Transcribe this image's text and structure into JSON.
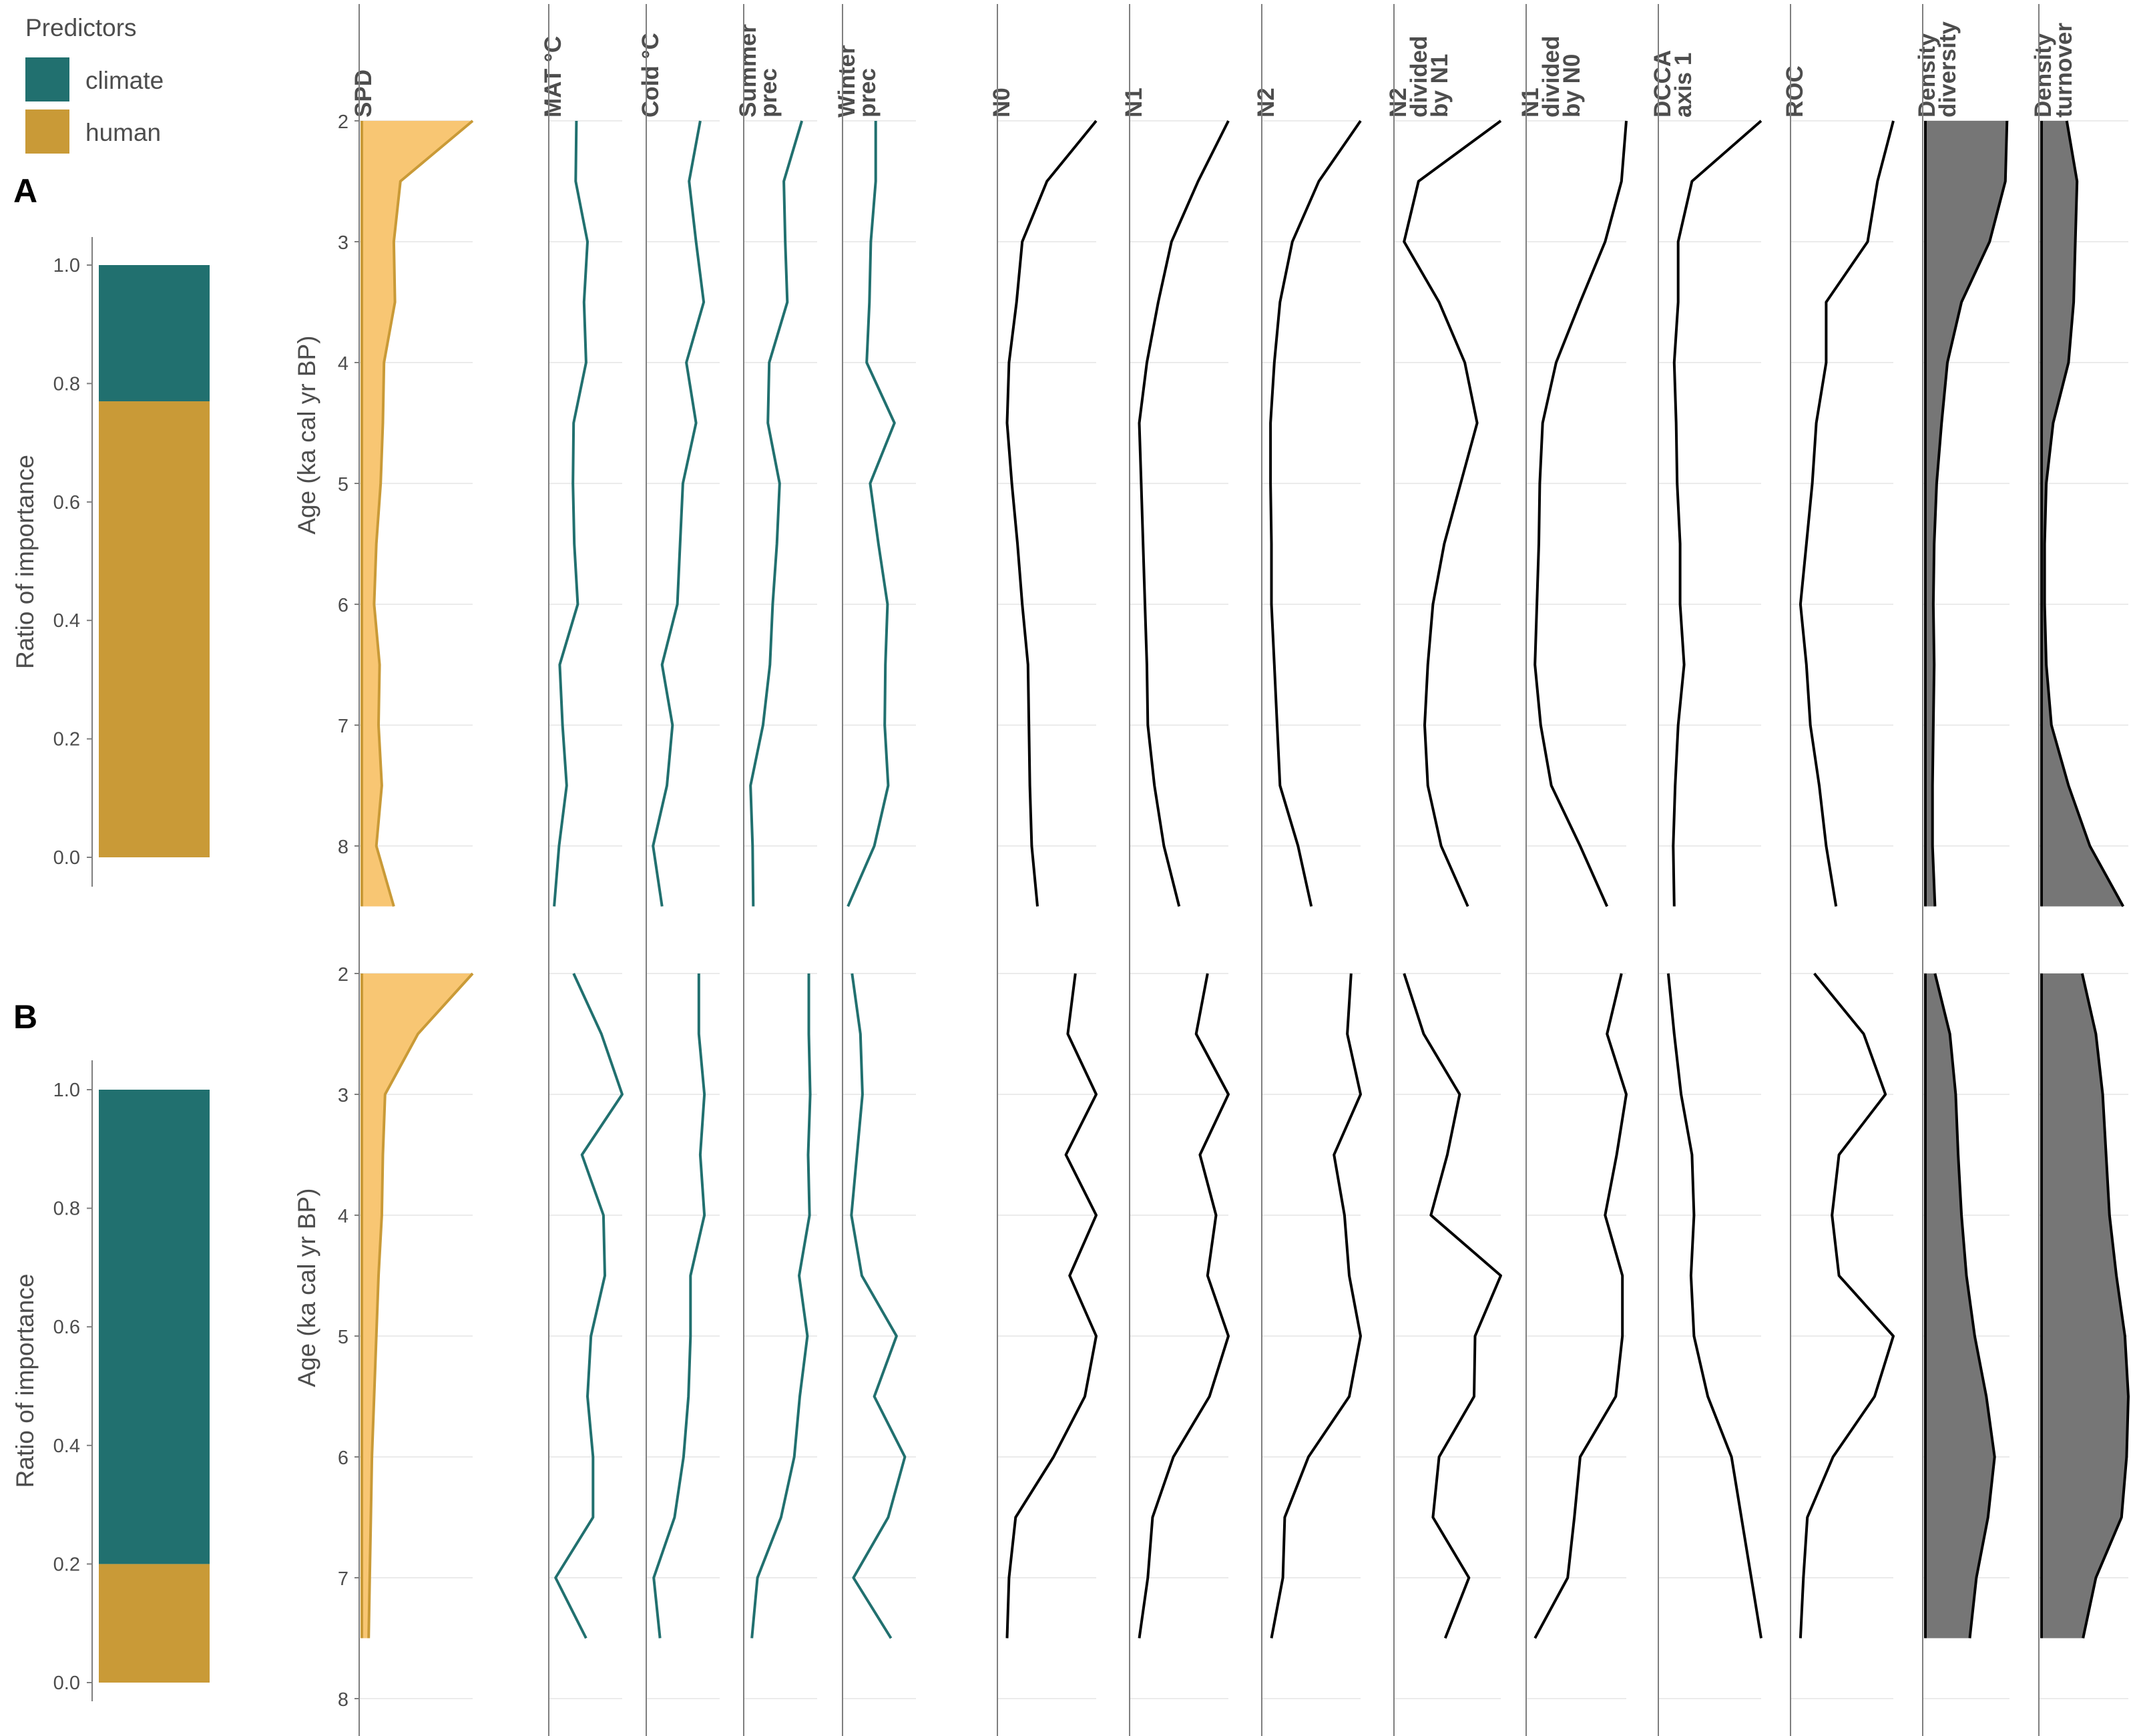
{
  "legend": {
    "title": "Predictors",
    "items": [
      {
        "label": "climate",
        "color": "#21706f"
      },
      {
        "label": "human",
        "color": "#c99a37"
      }
    ]
  },
  "colors": {
    "climate": "#21706f",
    "human": "#c99a37",
    "spd_fill": "#f8c673",
    "spd_line": "#c99a37",
    "diversity": "#000000",
    "density_fill": "#767676",
    "grid": "#ebebeb",
    "axis": "#7f7f7f"
  },
  "bar_axis": {
    "label": "Ratio of importance",
    "ticks": [
      "0.0",
      "0.2",
      "0.4",
      "0.6",
      "0.8",
      "1.0"
    ],
    "range": [
      0,
      1
    ]
  },
  "age_axis": {
    "label": "Age (ka cal yr BP)",
    "ticks": [
      "2",
      "3",
      "4",
      "5",
      "6",
      "7",
      "8"
    ]
  },
  "column_headers": [
    [
      "SPD"
    ],
    [
      "MAT °C"
    ],
    [
      "Cold °C"
    ],
    [
      "Summer",
      "prec"
    ],
    [
      "Winter",
      "prec"
    ],
    [
      "N0"
    ],
    [
      "N1"
    ],
    [
      "N2"
    ],
    [
      "N2",
      "divided",
      "by N1"
    ],
    [
      "N1",
      "divided",
      "by N0"
    ],
    [
      "DCCA",
      "axis 1"
    ],
    [
      "ROC"
    ],
    [
      "Density",
      "diversity"
    ],
    [
      "Density",
      "turnover"
    ]
  ],
  "chart_data": [
    {
      "panel": "A",
      "type": "stratigraphic",
      "importance_bar": {
        "human": 0.77,
        "climate": 0.23
      },
      "age_range": [
        2,
        8.5
      ],
      "ages": [
        2,
        2.5,
        3,
        3.5,
        4,
        4.5,
        5,
        5.5,
        6,
        6.5,
        7,
        7.5,
        8,
        8.5
      ],
      "series": [
        {
          "name": "SPD",
          "kind": "spd",
          "values": [
            1,
            0.34,
            0.28,
            0.29,
            0.19,
            0.18,
            0.16,
            0.12,
            0.1,
            0.15,
            0.14,
            0.17,
            0.12,
            0.28
          ]
        },
        {
          "name": "MAT °C",
          "kind": "climate",
          "values": [
            0.34,
            0.33,
            0.5,
            0.45,
            0.48,
            0.3,
            0.29,
            0.31,
            0.36,
            0.1,
            0.14,
            0.2,
            0.09,
            0.02
          ]
        },
        {
          "name": "Cold °C",
          "kind": "climate",
          "values": [
            0.72,
            0.56,
            0.66,
            0.77,
            0.52,
            0.66,
            0.47,
            0.43,
            0.39,
            0.17,
            0.32,
            0.24,
            0.04,
            0.17
          ]
        },
        {
          "name": "Summer prec",
          "kind": "climate",
          "values": [
            0.78,
            0.52,
            0.54,
            0.57,
            0.31,
            0.29,
            0.46,
            0.42,
            0.36,
            0.32,
            0.22,
            0.04,
            0.07,
            0.08
          ]
        },
        {
          "name": "Winter prec",
          "kind": "climate",
          "values": [
            0.42,
            0.42,
            0.35,
            0.33,
            0.29,
            0.69,
            0.34,
            0.46,
            0.59,
            0.56,
            0.55,
            0.6,
            0.4,
            0.02
          ]
        },
        {
          "name": "N0",
          "kind": "diversity",
          "values": [
            1,
            0.48,
            0.22,
            0.16,
            0.08,
            0.06,
            0.11,
            0.17,
            0.22,
            0.28,
            0.29,
            0.3,
            0.32,
            0.38
          ]
        },
        {
          "name": "N1",
          "kind": "diversity",
          "values": [
            1,
            0.68,
            0.4,
            0.26,
            0.14,
            0.06,
            0.08,
            0.1,
            0.12,
            0.14,
            0.15,
            0.22,
            0.32,
            0.48
          ]
        },
        {
          "name": "N2",
          "kind": "diversity",
          "values": [
            1,
            0.56,
            0.28,
            0.15,
            0.09,
            0.05,
            0.05,
            0.06,
            0.06,
            0.09,
            0.12,
            0.15,
            0.34,
            0.48
          ]
        },
        {
          "name": "N2 divided by N1",
          "kind": "diversity",
          "values": [
            1,
            0.2,
            0.06,
            0.4,
            0.65,
            0.77,
            0.61,
            0.45,
            0.34,
            0.29,
            0.26,
            0.29,
            0.42,
            0.68
          ]
        },
        {
          "name": "N1 divided by N0",
          "kind": "diversity",
          "values": [
            1,
            0.95,
            0.78,
            0.52,
            0.27,
            0.13,
            0.1,
            0.09,
            0.07,
            0.05,
            0.11,
            0.22,
            0.52,
            0.8
          ]
        },
        {
          "name": "DCCA axis 1",
          "kind": "diversity",
          "values": [
            1,
            0.3,
            0.16,
            0.16,
            0.12,
            0.14,
            0.15,
            0.18,
            0.18,
            0.22,
            0.16,
            0.13,
            0.11,
            0.12
          ]
        },
        {
          "name": "ROC",
          "kind": "diversity",
          "values": [
            1,
            0.84,
            0.74,
            0.32,
            0.32,
            0.22,
            0.18,
            0.12,
            0.06,
            0.12,
            0.16,
            0.25,
            0.32,
            0.42
          ]
        },
        {
          "name": "Density diversity",
          "kind": "density",
          "values": [
            0.97,
            0.95,
            0.76,
            0.42,
            0.25,
            0.18,
            0.12,
            0.09,
            0.08,
            0.09,
            0.08,
            0.07,
            0.07,
            0.1
          ]
        },
        {
          "name": "Density turnover",
          "kind": "density",
          "values": [
            0.28,
            0.4,
            0.38,
            0.36,
            0.3,
            0.12,
            0.04,
            0.02,
            0.02,
            0.04,
            0.1,
            0.3,
            0.55,
            0.94
          ]
        }
      ]
    },
    {
      "panel": "B",
      "type": "stratigraphic",
      "importance_bar": {
        "human": 0.2,
        "climate": 0.8
      },
      "age_range": [
        2,
        8.5
      ],
      "ages": [
        2,
        2.5,
        3,
        3.5,
        4,
        4.5,
        5,
        5.5,
        6,
        6.5,
        7,
        7.5
      ],
      "series": [
        {
          "name": "SPD",
          "kind": "spd",
          "values": [
            1,
            0.5,
            0.2,
            0.18,
            0.17,
            0.14,
            0.12,
            0.1,
            0.08,
            0.07,
            0.06,
            0.05
          ]
        },
        {
          "name": "MAT °C",
          "kind": "climate",
          "values": [
            0.3,
            0.7,
            1,
            0.42,
            0.73,
            0.75,
            0.55,
            0.5,
            0.58,
            0.58,
            0.04,
            0.48
          ]
        },
        {
          "name": "Cold °C",
          "kind": "climate",
          "values": [
            0.7,
            0.7,
            0.78,
            0.72,
            0.78,
            0.58,
            0.58,
            0.55,
            0.48,
            0.35,
            0.05,
            0.14
          ]
        },
        {
          "name": "Summer prec",
          "kind": "climate",
          "values": [
            0.88,
            0.88,
            0.9,
            0.87,
            0.89,
            0.74,
            0.86,
            0.75,
            0.67,
            0.48,
            0.14,
            0.06
          ]
        },
        {
          "name": "Winter prec",
          "kind": "climate",
          "values": [
            0.08,
            0.2,
            0.23,
            0.15,
            0.07,
            0.22,
            0.72,
            0.4,
            0.84,
            0.6,
            0.1,
            0.64
          ]
        },
        {
          "name": "N0",
          "kind": "diversity",
          "values": [
            0.78,
            0.7,
            1,
            0.68,
            1,
            0.72,
            1,
            0.88,
            0.55,
            0.15,
            0.08,
            0.06
          ]
        },
        {
          "name": "N1",
          "kind": "diversity",
          "values": [
            0.78,
            0.66,
            1,
            0.7,
            0.87,
            0.78,
            1,
            0.8,
            0.42,
            0.2,
            0.15,
            0.06
          ]
        },
        {
          "name": "N2",
          "kind": "diversity",
          "values": [
            0.9,
            0.86,
            1,
            0.72,
            0.83,
            0.88,
            1,
            0.88,
            0.45,
            0.2,
            0.18,
            0.06
          ]
        },
        {
          "name": "N2 divided by N1",
          "kind": "diversity",
          "values": [
            0.06,
            0.25,
            0.6,
            0.48,
            0.32,
            1,
            0.75,
            0.74,
            0.4,
            0.34,
            0.69,
            0.46
          ]
        },
        {
          "name": "N1 divided by N0",
          "kind": "diversity",
          "values": [
            0.95,
            0.8,
            1,
            0.9,
            0.78,
            0.96,
            0.96,
            0.89,
            0.52,
            0.46,
            0.39,
            0.05
          ]
        },
        {
          "name": "DCCA axis 1",
          "kind": "diversity",
          "values": [
            0.06,
            0.12,
            0.19,
            0.3,
            0.32,
            0.29,
            0.32,
            0.46,
            0.7,
            0.8,
            0.9,
            1
          ]
        },
        {
          "name": "ROC",
          "kind": "diversity",
          "values": [
            0.2,
            0.7,
            0.92,
            0.45,
            0.38,
            0.45,
            1,
            0.81,
            0.39,
            0.13,
            0.09,
            0.06
          ]
        },
        {
          "name": "Density diversity",
          "kind": "density",
          "values": [
            0.1,
            0.28,
            0.35,
            0.38,
            0.42,
            0.48,
            0.58,
            0.72,
            0.82,
            0.74,
            0.6,
            0.52
          ]
        },
        {
          "name": "Density turnover",
          "kind": "density",
          "values": [
            0.46,
            0.62,
            0.7,
            0.74,
            0.78,
            0.86,
            0.96,
            1,
            0.98,
            0.92,
            0.62,
            0.47
          ]
        }
      ]
    }
  ]
}
